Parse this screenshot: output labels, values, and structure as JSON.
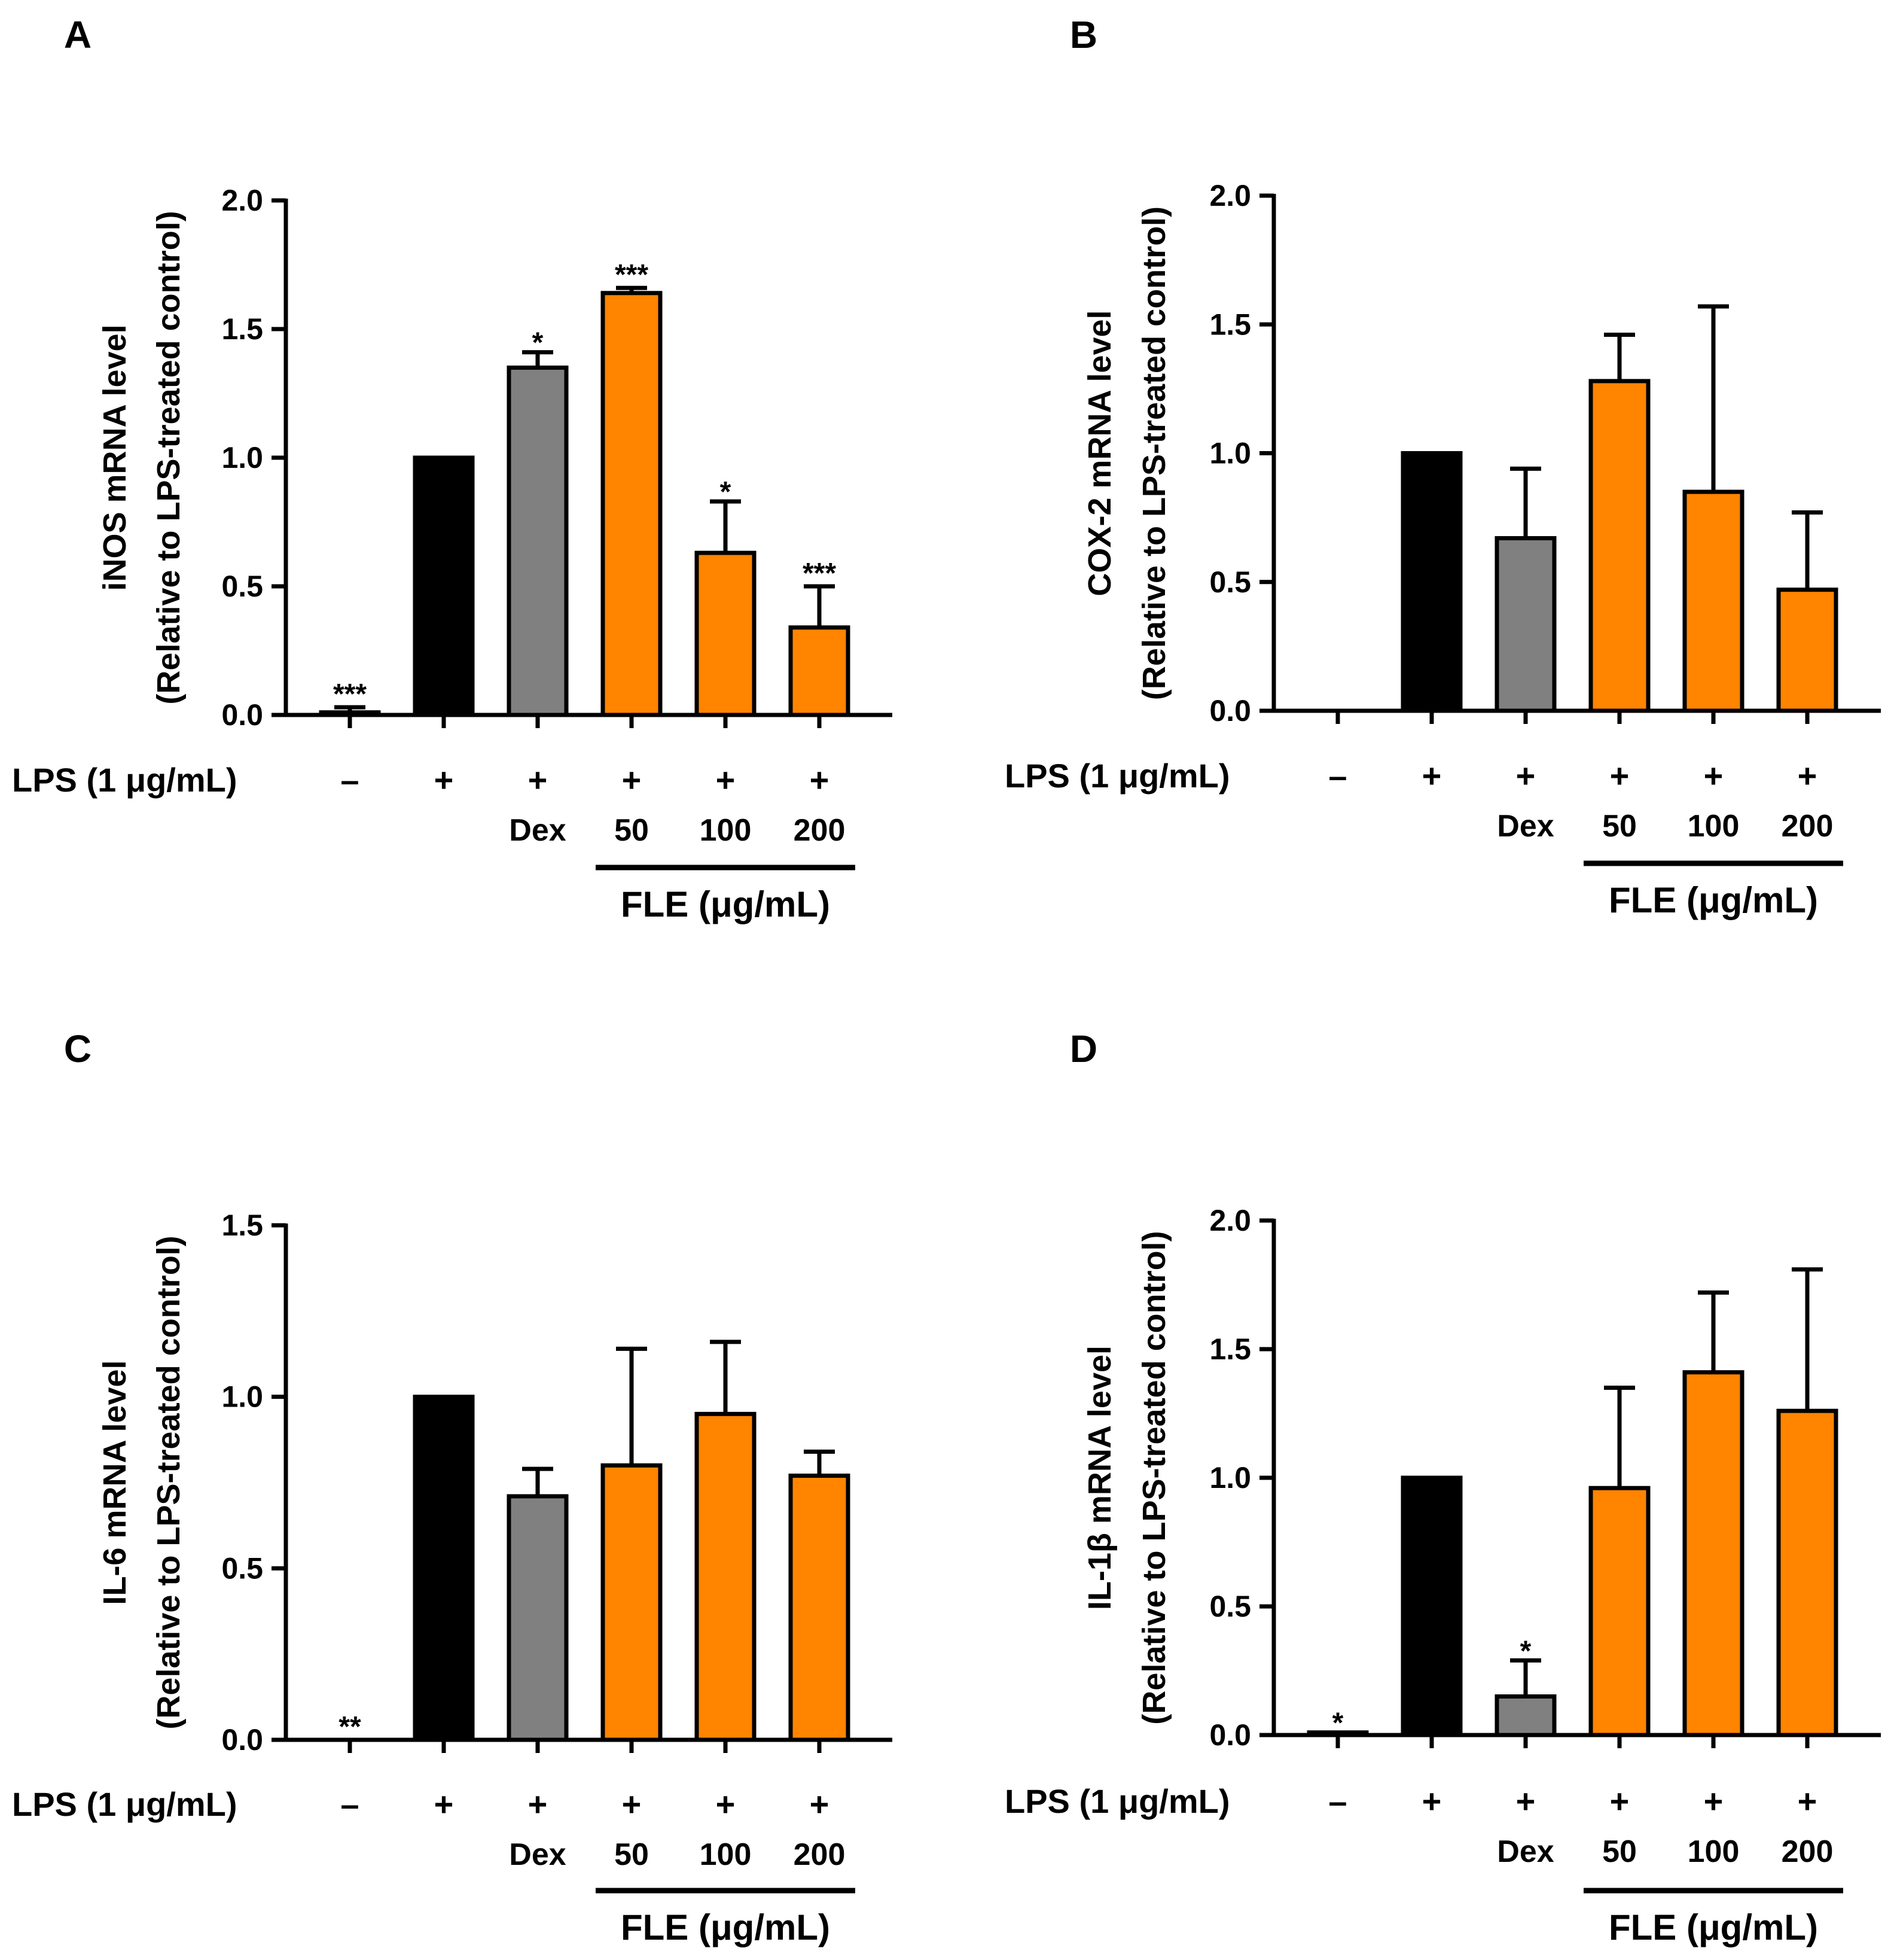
{
  "figure": {
    "treatment_row": {
      "row_label": "LPS (1 μg/mL)",
      "signs": [
        "–",
        "+",
        "+",
        "+",
        "+",
        "+"
      ],
      "group_labels": [
        "",
        "",
        "Dex",
        "50",
        "100",
        "200"
      ],
      "bracket_label": "FLE (μg/mL)"
    },
    "colors": {
      "control": "#ffffff",
      "lps": "#000000",
      "dex": "#808080",
      "fle": "#ff8400",
      "outline": "#000000"
    }
  },
  "chart_data": [
    {
      "panel": "A",
      "type": "bar",
      "title": "",
      "xlabel": "",
      "ylabel_line1": "iNOS mRNA level",
      "ylabel_line2": "(Relative to LPS-treated control)",
      "ylim": [
        0,
        2.0
      ],
      "yticks": [
        "0.0",
        "0.5",
        "1.0",
        "1.5",
        "2.0"
      ],
      "categories": [
        "LPS −",
        "LPS",
        "LPS + Dex",
        "LPS + FLE 50",
        "LPS + FLE 100",
        "LPS + FLE 200"
      ],
      "values": [
        0.01,
        1.0,
        1.35,
        1.64,
        0.63,
        0.34
      ],
      "errors": [
        0.02,
        0,
        0.06,
        0.02,
        0.2,
        0.16
      ],
      "significance": [
        "***",
        "",
        "*",
        "***",
        "*",
        "***"
      ]
    },
    {
      "panel": "B",
      "type": "bar",
      "title": "",
      "xlabel": "",
      "ylabel_line1": "COX-2 mRNA level",
      "ylabel_line2": "(Relative to LPS-treated control)",
      "ylim": [
        0,
        2.0
      ],
      "yticks": [
        "0.0",
        "0.5",
        "1.0",
        "1.5",
        "2.0"
      ],
      "categories": [
        "LPS −",
        "LPS",
        "LPS + Dex",
        "LPS + FLE 50",
        "LPS + FLE 100",
        "LPS + FLE 200"
      ],
      "values": [
        0.0,
        1.0,
        0.67,
        1.28,
        0.85,
        0.47
      ],
      "errors": [
        0,
        0,
        0.27,
        0.18,
        0.72,
        0.3
      ],
      "significance": [
        "",
        "",
        "",
        "",
        "",
        ""
      ]
    },
    {
      "panel": "C",
      "type": "bar",
      "title": "",
      "xlabel": "",
      "ylabel_line1": "IL-6 mRNA level",
      "ylabel_line2": "(Relative to LPS-treated control)",
      "ylim": [
        0,
        1.5
      ],
      "yticks": [
        "0.0",
        "0.5",
        "1.0",
        "1.5"
      ],
      "categories": [
        "LPS −",
        "LPS",
        "LPS + Dex",
        "LPS + FLE 50",
        "LPS + FLE 100",
        "LPS + FLE 200"
      ],
      "values": [
        0.0,
        1.0,
        0.71,
        0.8,
        0.95,
        0.77
      ],
      "errors": [
        0,
        0,
        0.08,
        0.34,
        0.21,
        0.07
      ],
      "significance": [
        "**",
        "",
        "",
        "",
        "",
        ""
      ]
    },
    {
      "panel": "D",
      "type": "bar",
      "title": "",
      "xlabel": "",
      "ylabel_line1": "IL-1β mRNA level",
      "ylabel_line2": "(Relative to LPS-treated control)",
      "ylim": [
        0,
        2.0
      ],
      "yticks": [
        "0.0",
        "0.5",
        "1.0",
        "1.5",
        "2.0"
      ],
      "categories": [
        "LPS −",
        "LPS",
        "LPS + Dex",
        "LPS + FLE 50",
        "LPS + FLE 100",
        "LPS + FLE 200"
      ],
      "values": [
        0.01,
        1.0,
        0.15,
        0.96,
        1.41,
        1.26
      ],
      "errors": [
        0,
        0,
        0.14,
        0.39,
        0.31,
        0.55
      ],
      "significance": [
        "*",
        "",
        "*",
        "",
        "",
        ""
      ]
    }
  ]
}
